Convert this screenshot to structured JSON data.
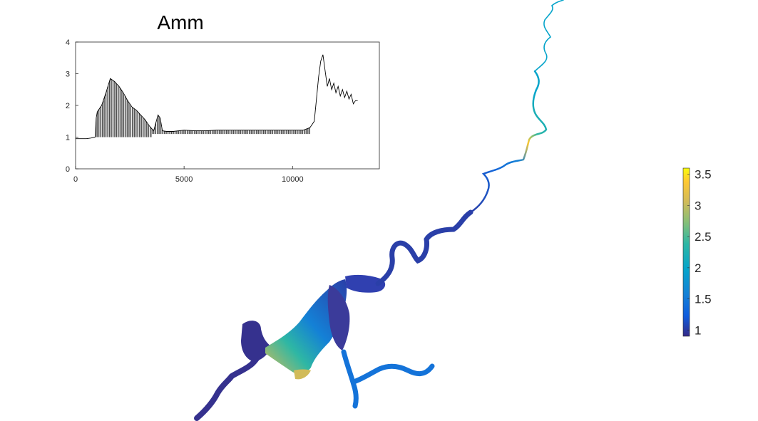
{
  "chart_data": [
    {
      "type": "line",
      "title": "Amm",
      "xlabel": "",
      "ylabel": "",
      "xlim": [
        0,
        14000
      ],
      "ylim": [
        0,
        4
      ],
      "xticks": [
        "0",
        "5000",
        "10000"
      ],
      "yticks": [
        "0",
        "1",
        "2",
        "3",
        "4"
      ],
      "grid": false,
      "series": [
        {
          "color": "#000000",
          "x": [
            0,
            500,
            700,
            900,
            950,
            1000,
            1100,
            1200,
            1400,
            1600,
            1800,
            2000,
            2200,
            2400,
            2600,
            2800,
            3000,
            3200,
            3400,
            3600,
            3800,
            3900,
            4000,
            4200,
            4500,
            5000,
            5500,
            6000,
            6500,
            7000,
            7500,
            8000,
            8500,
            9000,
            9500,
            10000,
            10500,
            10800,
            11000,
            11100,
            11200,
            11300,
            11400,
            11500,
            11600,
            11700,
            11800,
            11900,
            12000,
            12100,
            12200,
            12300,
            12400,
            12500,
            12600,
            12700,
            12800,
            12900,
            13000
          ],
          "y": [
            0.95,
            0.95,
            0.97,
            1.0,
            1.6,
            1.8,
            1.9,
            2.0,
            2.4,
            2.85,
            2.75,
            2.6,
            2.4,
            2.15,
            1.95,
            1.85,
            1.7,
            1.55,
            1.35,
            1.2,
            1.7,
            1.6,
            1.2,
            1.18,
            1.18,
            1.22,
            1.2,
            1.2,
            1.22,
            1.22,
            1.22,
            1.22,
            1.22,
            1.22,
            1.22,
            1.22,
            1.22,
            1.3,
            1.5,
            2.2,
            2.9,
            3.4,
            3.6,
            3.1,
            2.6,
            2.85,
            2.5,
            2.7,
            2.4,
            2.6,
            2.3,
            2.5,
            2.25,
            2.45,
            2.2,
            2.35,
            2.05,
            2.15,
            2.15
          ]
        }
      ]
    },
    {
      "type": "heatmap",
      "title": "",
      "colormap": "parula",
      "clim": [
        0.9,
        3.6
      ],
      "colorbar_ticks": [
        "1",
        "1.5",
        "2",
        "2.5",
        "3",
        "3.5"
      ],
      "colorbar_location": "right",
      "colors": [
        "#352a87",
        "#0f5cdd",
        "#1481d6",
        "#06a4ca",
        "#2eb7a4",
        "#87bf77",
        "#d1bb59",
        "#fec832",
        "#f9fb0e"
      ]
    }
  ]
}
